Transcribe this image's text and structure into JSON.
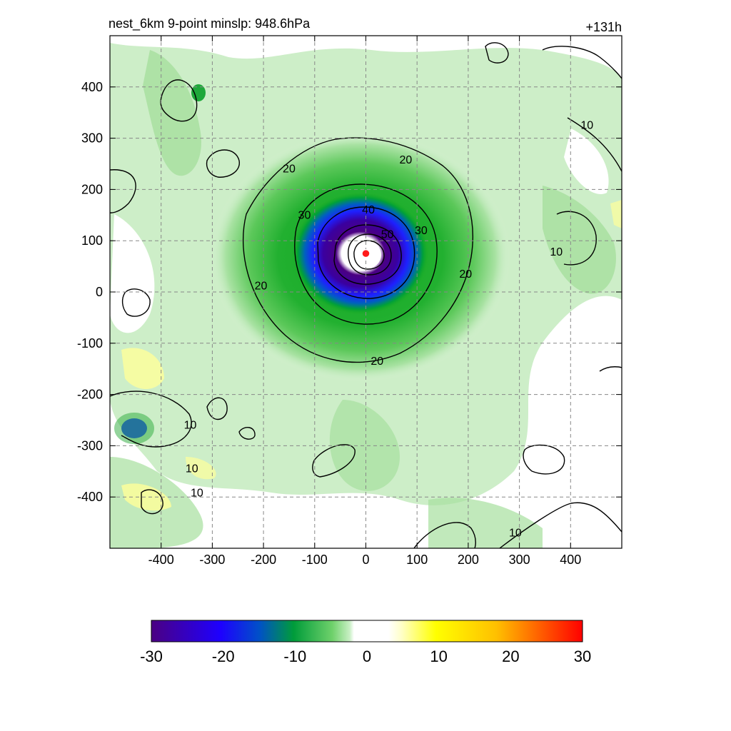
{
  "chart_data": {
    "type": "heatmap",
    "title_left": "nest_6km  9-point minslp: 948.6hPa",
    "title_right": "+131h",
    "xlabel": "",
    "ylabel": "",
    "xlim": [
      -500,
      500
    ],
    "ylim": [
      -500,
      500
    ],
    "x_ticks": [
      -400,
      -300,
      -200,
      -100,
      0,
      100,
      200,
      300,
      400
    ],
    "y_ticks": [
      400,
      300,
      200,
      100,
      0,
      -100,
      -200,
      -300,
      -400
    ],
    "grid": true,
    "storm_center": {
      "x": 0,
      "y": 75
    },
    "colorbar": {
      "min": -30,
      "max": 30,
      "ticks": [
        -30,
        -20,
        -10,
        0,
        10,
        20,
        30
      ],
      "colors": [
        "#4b0082",
        "#1e00ff",
        "#0050c8",
        "#009c3a",
        "#6fd16b",
        "#c8efc4",
        "#ffffff",
        "#ffff8c",
        "#ffff00",
        "#ffc000",
        "#ff6000",
        "#ff0000"
      ]
    },
    "contours": [
      {
        "level": 20,
        "radius": 230
      },
      {
        "level": 30,
        "radius": 140
      },
      {
        "level": 40,
        "radius": 100
      },
      {
        "level": 50,
        "radius": 62
      }
    ],
    "contour_labels": [
      {
        "text": "20",
        "x": -150,
        "y": 240
      },
      {
        "text": "20",
        "x": 78,
        "y": 258
      },
      {
        "text": "20",
        "x": -205,
        "y": 12
      },
      {
        "text": "20",
        "x": 195,
        "y": 35
      },
      {
        "text": "20",
        "x": 22,
        "y": -135
      },
      {
        "text": "30",
        "x": -120,
        "y": 150
      },
      {
        "text": "30",
        "x": 108,
        "y": 120
      },
      {
        "text": "40",
        "x": 5,
        "y": 160
      },
      {
        "text": "50",
        "x": 42,
        "y": 112
      },
      {
        "text": "10",
        "x": 432,
        "y": 325
      },
      {
        "text": "10",
        "x": 372,
        "y": 78
      },
      {
        "text": "10",
        "x": -343,
        "y": -260
      },
      {
        "text": "10",
        "x": -340,
        "y": -345
      },
      {
        "text": "10",
        "x": -330,
        "y": -392
      },
      {
        "text": "10",
        "x": 292,
        "y": -470
      }
    ]
  }
}
